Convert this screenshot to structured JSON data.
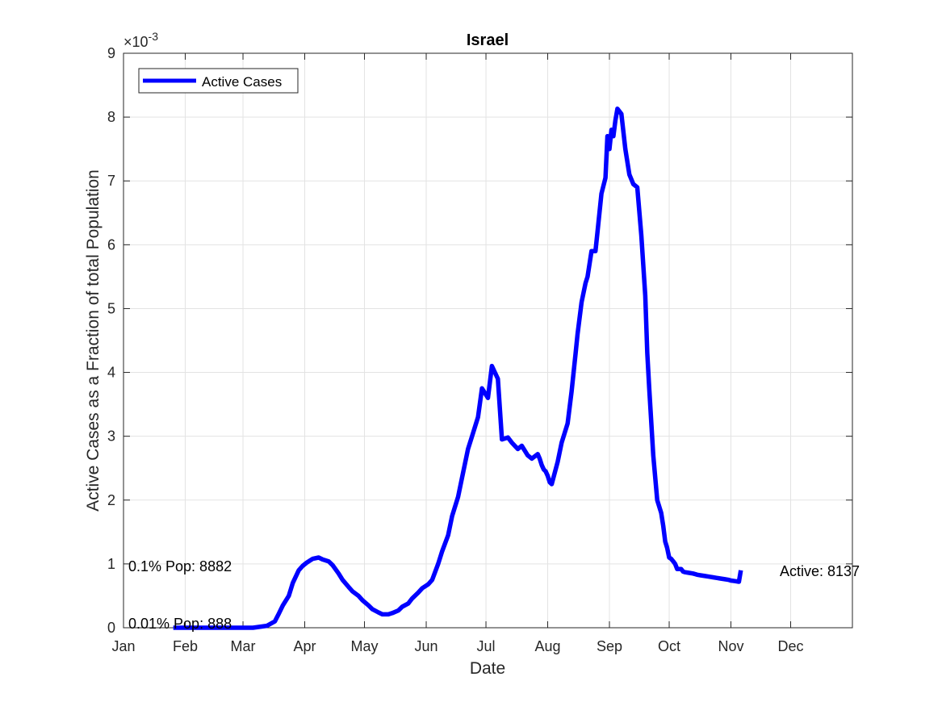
{
  "chart_data": {
    "type": "line",
    "title": "Israel",
    "xlabel": "Date",
    "ylabel": "Active Cases as a Fraction of total Population",
    "y_exponent_label": "×10",
    "y_exponent_power": "-3",
    "x_ticks": [
      {
        "label": "Jan",
        "day": 0
      },
      {
        "label": "Feb",
        "day": 31
      },
      {
        "label": "Mar",
        "day": 60
      },
      {
        "label": "Apr",
        "day": 91
      },
      {
        "label": "May",
        "day": 121
      },
      {
        "label": "Jun",
        "day": 152
      },
      {
        "label": "Jul",
        "day": 182
      },
      {
        "label": "Aug",
        "day": 213
      },
      {
        "label": "Sep",
        "day": 244
      },
      {
        "label": "Oct",
        "day": 274
      },
      {
        "label": "Nov",
        "day": 305
      },
      {
        "label": "Dec",
        "day": 335
      }
    ],
    "xlim": [
      0,
      366
    ],
    "y_ticks": [
      "0",
      "1",
      "2",
      "3",
      "4",
      "5",
      "6",
      "7",
      "8",
      "9"
    ],
    "ylim": [
      0,
      9
    ],
    "grid": true,
    "legend_position": "top-left",
    "series": [
      {
        "name": "Active Cases",
        "color": "#0000ff",
        "x": [
          25,
          40,
          55,
          65,
          72,
          76,
          78,
          80,
          83,
          85,
          88,
          90,
          92,
          95,
          98,
          100,
          103,
          105,
          108,
          110,
          113,
          115,
          118,
          120,
          123,
          125,
          128,
          130,
          133,
          135,
          138,
          140,
          143,
          145,
          148,
          150,
          153,
          155,
          158,
          160,
          163,
          165,
          168,
          170,
          173,
          175,
          178,
          180,
          183,
          185,
          188,
          190,
          193,
          195,
          198,
          200,
          203,
          205,
          208,
          209,
          210,
          211,
          212,
          213,
          214,
          215,
          218,
          220,
          223,
          225,
          226,
          227,
          228,
          230,
          232,
          233,
          235,
          237,
          238,
          240,
          242,
          243,
          244,
          245,
          246,
          247,
          248,
          250,
          252,
          254,
          256,
          258,
          260,
          262,
          263,
          264,
          266,
          268,
          270,
          271,
          272,
          273,
          274,
          275,
          276,
          277,
          278,
          280,
          281,
          282,
          284,
          286,
          287,
          288,
          290,
          292,
          294,
          296,
          298,
          300,
          302,
          304,
          305,
          307,
          309,
          310
        ],
        "y": [
          0,
          0,
          0,
          0,
          0.03,
          0.1,
          0.22,
          0.35,
          0.5,
          0.7,
          0.9,
          0.97,
          1.02,
          1.08,
          1.1,
          1.07,
          1.04,
          0.98,
          0.85,
          0.75,
          0.64,
          0.57,
          0.5,
          0.43,
          0.35,
          0.29,
          0.24,
          0.21,
          0.21,
          0.23,
          0.27,
          0.33,
          0.38,
          0.46,
          0.55,
          0.62,
          0.68,
          0.75,
          1.0,
          1.2,
          1.45,
          1.75,
          2.05,
          2.35,
          2.8,
          3.0,
          3.3,
          3.75,
          3.6,
          4.1,
          3.9,
          2.95,
          2.98,
          2.9,
          2.8,
          2.85,
          2.7,
          2.65,
          2.72,
          2.65,
          2.55,
          2.48,
          2.45,
          2.38,
          2.28,
          2.25,
          2.6,
          2.9,
          3.2,
          3.7,
          4.0,
          4.3,
          4.6,
          5.1,
          5.4,
          5.5,
          5.9,
          5.9,
          6.2,
          6.8,
          7.05,
          7.7,
          7.5,
          7.8,
          7.7,
          7.95,
          8.13,
          8.05,
          7.5,
          7.1,
          6.95,
          6.9,
          6.15,
          5.2,
          4.3,
          3.75,
          2.7,
          2.0,
          1.8,
          1.6,
          1.35,
          1.25,
          1.1,
          1.08,
          1.04,
          1.0,
          0.92,
          0.92,
          0.88,
          0.87,
          0.86,
          0.85,
          0.84,
          0.83,
          0.82,
          0.81,
          0.8,
          0.79,
          0.78,
          0.77,
          0.76,
          0.75,
          0.74,
          0.73,
          0.72,
          0.9
        ]
      }
    ],
    "annotations": [
      {
        "text": "0.1% Pop: 8882",
        "y": 1
      },
      {
        "text": "0.01% Pop: 888",
        "y": 0.1
      },
      {
        "text": "Active: 8137",
        "y": 0.9
      }
    ]
  }
}
